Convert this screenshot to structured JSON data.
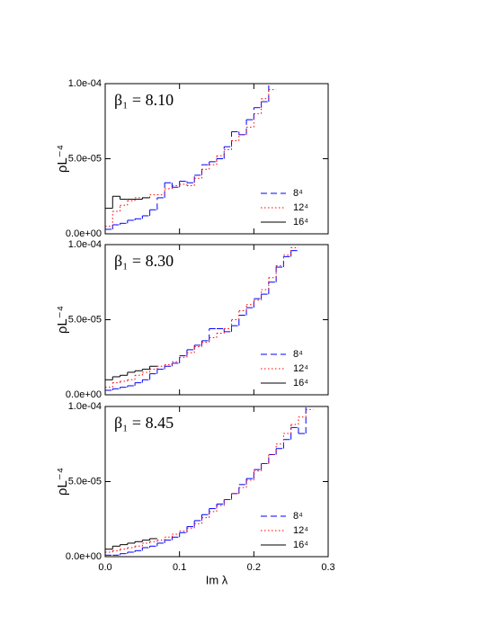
{
  "chart_data": [
    {
      "type": "histogram",
      "annotation": "β₁ = 8.10",
      "ylabel": "ρL⁻⁴",
      "xlim": [
        0,
        0.3
      ],
      "xticks": [
        0,
        0.1,
        0.2,
        0.3
      ],
      "xtick_labels": false,
      "ylim": [
        0,
        0.0001
      ],
      "yticks": [
        {
          "value": 0,
          "label": "0.0e+00"
        },
        {
          "value": 5e-05,
          "label": "5.0e-05"
        },
        {
          "value": 0.0001,
          "label": "1.0e-04"
        }
      ],
      "legend": "lower right",
      "series": [
        {
          "name": "8⁴",
          "color": "#0000ff",
          "dash": "dashed",
          "bins": [
            0,
            0.01,
            0.02,
            0.03,
            0.04,
            0.05,
            0.06,
            0.07,
            0.08,
            0.09,
            0.1,
            0.11,
            0.12,
            0.13,
            0.14,
            0.15,
            0.16,
            0.17,
            0.18,
            0.19,
            0.2,
            0.21,
            0.22,
            0.23
          ],
          "values": [
            3e-06,
            6e-06,
            7e-06,
            9e-06,
            1e-05,
            1.2e-05,
            1.6e-05,
            2.4e-05,
            3.4e-05,
            3.1e-05,
            3.5e-05,
            3.4e-05,
            3.9e-05,
            4.6e-05,
            4.8e-05,
            5e-05,
            5.8e-05,
            6.8e-05,
            6.6e-05,
            7.6e-05,
            8.4e-05,
            8.8e-05,
            0.0001
          ]
        },
        {
          "name": "12⁴",
          "color": "#ff0000",
          "dash": "dotted",
          "bins": [
            0,
            0.01,
            0.02,
            0.03,
            0.04,
            0.05,
            0.06,
            0.07,
            0.08,
            0.09,
            0.1,
            0.11,
            0.12,
            0.13,
            0.14,
            0.15,
            0.16,
            0.17,
            0.18,
            0.19,
            0.2,
            0.21,
            0.22,
            0.23
          ],
          "values": [
            5e-06,
            1.5e-05,
            1.9e-05,
            2.2e-05,
            2.4e-05,
            2.4e-05,
            2.6e-05,
            2.6e-05,
            3e-05,
            3.2e-05,
            3.3e-05,
            3.2e-05,
            3.7e-05,
            4.3e-05,
            4.6e-05,
            5.2e-05,
            5.6e-05,
            6.2e-05,
            6.6e-05,
            7.1e-05,
            8e-05,
            9e-05,
            9.6e-05
          ]
        },
        {
          "name": "16⁴",
          "color": "#000000",
          "dash": "solid",
          "bins": [
            0,
            0.01,
            0.02,
            0.03,
            0.04,
            0.05,
            0.06
          ],
          "values": [
            1.7e-05,
            2.5e-05,
            2.3e-05,
            2.3e-05,
            2.3e-05,
            2.4e-05
          ]
        }
      ]
    },
    {
      "type": "histogram",
      "annotation": "β₁ = 8.30",
      "ylabel": "ρL⁻⁴",
      "xlim": [
        0,
        0.3
      ],
      "xticks": [
        0,
        0.1,
        0.2,
        0.3
      ],
      "xtick_labels": false,
      "ylim": [
        0,
        0.0001
      ],
      "yticks": [
        {
          "value": 0,
          "label": "0.0e+00"
        },
        {
          "value": 5e-05,
          "label": "5.0e-05"
        },
        {
          "value": 0.0001,
          "label": "1.0e-04"
        }
      ],
      "legend": "lower right",
      "series": [
        {
          "name": "8⁴",
          "color": "#0000ff",
          "dash": "dashed",
          "bins": [
            0,
            0.01,
            0.02,
            0.03,
            0.04,
            0.05,
            0.06,
            0.07,
            0.08,
            0.09,
            0.1,
            0.11,
            0.12,
            0.13,
            0.14,
            0.15,
            0.16,
            0.17,
            0.18,
            0.19,
            0.2,
            0.21,
            0.22,
            0.23,
            0.24,
            0.25,
            0.26
          ],
          "values": [
            3e-06,
            4e-06,
            5e-06,
            6e-06,
            8e-06,
            1e-05,
            1.4e-05,
            1.7e-05,
            1.9e-05,
            2.1e-05,
            2.6e-05,
            3e-05,
            3.3e-05,
            3.6e-05,
            4.4e-05,
            4.4e-05,
            4.2e-05,
            4.6e-05,
            5.3e-05,
            5.8e-05,
            6.4e-05,
            6.7e-05,
            7.5e-05,
            8.5e-05,
            9.2e-05,
            9.6e-05
          ]
        },
        {
          "name": "12⁴",
          "color": "#ff0000",
          "dash": "dotted",
          "bins": [
            0,
            0.01,
            0.02,
            0.03,
            0.04,
            0.05,
            0.06,
            0.07,
            0.08,
            0.09,
            0.1,
            0.11,
            0.12,
            0.13,
            0.14,
            0.15,
            0.16,
            0.17,
            0.18,
            0.19,
            0.2,
            0.21,
            0.22,
            0.23,
            0.24,
            0.25,
            0.26
          ],
          "values": [
            5e-06,
            8e-06,
            9e-06,
            1e-05,
            1.3e-05,
            1.5e-05,
            1.7e-05,
            1.9e-05,
            2e-05,
            2.2e-05,
            2.5e-05,
            2.8e-05,
            3.2e-05,
            3.5e-05,
            3.8e-05,
            4.1e-05,
            4.4e-05,
            5e-05,
            5.6e-05,
            6e-05,
            6.3e-05,
            7e-05,
            7.8e-05,
            8.6e-05,
            9.3e-05,
            9.8e-05
          ]
        },
        {
          "name": "16⁴",
          "color": "#000000",
          "dash": "solid",
          "bins": [
            0,
            0.01,
            0.02,
            0.03,
            0.04,
            0.05,
            0.06,
            0.07
          ],
          "values": [
            1e-05,
            1.2e-05,
            1.3e-05,
            1.5e-05,
            1.6e-05,
            1.7e-05,
            1.9e-05
          ]
        }
      ]
    },
    {
      "type": "histogram",
      "annotation": "β₁ = 8.45",
      "ylabel": "ρL⁻⁴",
      "xlabel": "Im λ",
      "xlim": [
        0,
        0.3
      ],
      "xticks": [
        {
          "value": 0,
          "label": "0.0"
        },
        0.1,
        0.2,
        0.3
      ],
      "xtick_labels": true,
      "ylim": [
        0,
        0.0001
      ],
      "yticks": [
        {
          "value": 0,
          "label": "0.0e+00"
        },
        {
          "value": 5e-05,
          "label": "5.0e-05"
        },
        {
          "value": 0.0001,
          "label": "1.0e-04"
        }
      ],
      "legend": "lower right",
      "series": [
        {
          "name": "8⁴",
          "color": "#0000ff",
          "dash": "dashed",
          "bins": [
            0,
            0.01,
            0.02,
            0.03,
            0.04,
            0.05,
            0.06,
            0.07,
            0.08,
            0.09,
            0.1,
            0.11,
            0.12,
            0.13,
            0.14,
            0.15,
            0.16,
            0.17,
            0.18,
            0.19,
            0.2,
            0.21,
            0.22,
            0.23,
            0.24,
            0.25,
            0.26,
            0.27,
            0.28
          ],
          "values": [
            1e-06,
            1e-06,
            2e-06,
            3e-06,
            4e-06,
            6e-06,
            7e-06,
            9e-06,
            1.1e-05,
            1.3e-05,
            1.6e-05,
            2e-05,
            2.4e-05,
            2.8e-05,
            3.2e-05,
            3.5e-05,
            3.8e-05,
            4.2e-05,
            4.8e-05,
            5.2e-05,
            5.8e-05,
            6.2e-05,
            6.8e-05,
            7.2e-05,
            7.8e-05,
            8.6e-05,
            8.2e-05,
            0.0001
          ]
        },
        {
          "name": "12⁴",
          "color": "#ff0000",
          "dash": "dotted",
          "bins": [
            0,
            0.01,
            0.02,
            0.03,
            0.04,
            0.05,
            0.06,
            0.07,
            0.08,
            0.09,
            0.1,
            0.11,
            0.12,
            0.13,
            0.14,
            0.15,
            0.16,
            0.17,
            0.18,
            0.19,
            0.2,
            0.21,
            0.22,
            0.23,
            0.24,
            0.25,
            0.26,
            0.27,
            0.28
          ],
          "values": [
            3e-06,
            4e-06,
            5e-06,
            6e-06,
            7e-06,
            9e-06,
            1e-05,
            1.1e-05,
            1.3e-05,
            1.5e-05,
            1.7e-05,
            1.9e-05,
            2.2e-05,
            2.6e-05,
            3e-05,
            3.4e-05,
            3.8e-05,
            4.2e-05,
            4.6e-05,
            5.1e-05,
            5.7e-05,
            6.2e-05,
            6.8e-05,
            7.5e-05,
            8.2e-05,
            8.8e-05,
            9.3e-05,
            9.8e-05
          ]
        },
        {
          "name": "16⁴",
          "color": "#000000",
          "dash": "solid",
          "bins": [
            0,
            0.01,
            0.02,
            0.03,
            0.04,
            0.05,
            0.06,
            0.07
          ],
          "values": [
            5e-06,
            7e-06,
            8e-06,
            9e-06,
            1e-05,
            1.1e-05,
            1.2e-05
          ]
        }
      ]
    }
  ]
}
